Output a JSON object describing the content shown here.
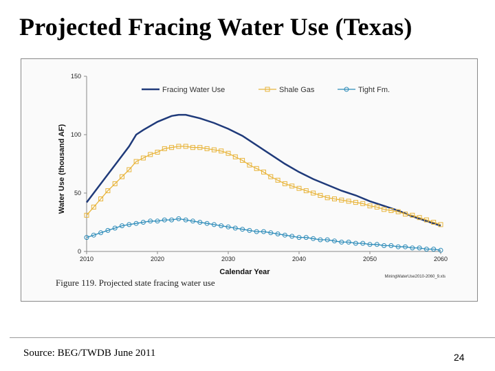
{
  "slide": {
    "title": "Projected Fracing Water Use (Texas)",
    "source": "Source: BEG/TWDB June 2011",
    "page_number": "24"
  },
  "figure": {
    "caption": "Figure 119. Projected state fracing water use",
    "filename": "MiningWaterUse2010-2060_9.xls"
  },
  "chart_data": {
    "type": "line",
    "xlabel": "Calendar Year",
    "ylabel": "Water Use (thousand AF)",
    "xlim": [
      2010,
      2060
    ],
    "ylim": [
      0,
      150
    ],
    "x_ticks": [
      2010,
      2020,
      2030,
      2040,
      2050,
      2060
    ],
    "y_ticks": [
      0,
      50,
      100,
      150
    ],
    "grid": false,
    "legend_position": "top",
    "series": [
      {
        "name": "Fracing Water Use",
        "color": "#1f3a7a",
        "marker": "none",
        "x": [
          2010,
          2012,
          2014,
          2016,
          2017,
          2018,
          2020,
          2022,
          2023,
          2024,
          2026,
          2028,
          2030,
          2032,
          2034,
          2036,
          2038,
          2040,
          2042,
          2044,
          2046,
          2048,
          2050,
          2052,
          2054,
          2056,
          2058,
          2060
        ],
        "values": [
          42,
          58,
          74,
          90,
          100,
          104,
          111,
          116,
          117,
          117,
          114,
          110,
          105,
          99,
          91,
          83,
          75,
          68,
          62,
          57,
          52,
          48,
          43,
          39,
          35,
          30,
          26,
          22
        ]
      },
      {
        "name": "Shale Gas",
        "color": "#e8b43a",
        "marker": "square",
        "x": [
          2010,
          2011,
          2012,
          2013,
          2014,
          2015,
          2016,
          2017,
          2018,
          2019,
          2020,
          2021,
          2022,
          2023,
          2024,
          2025,
          2026,
          2027,
          2028,
          2029,
          2030,
          2031,
          2032,
          2033,
          2034,
          2035,
          2036,
          2037,
          2038,
          2039,
          2040,
          2041,
          2042,
          2043,
          2044,
          2045,
          2046,
          2047,
          2048,
          2049,
          2050,
          2051,
          2052,
          2053,
          2054,
          2055,
          2056,
          2057,
          2058,
          2059,
          2060
        ],
        "values": [
          31,
          38,
          45,
          52,
          58,
          64,
          70,
          77,
          80,
          83,
          85,
          88,
          89,
          90,
          90,
          89,
          89,
          88,
          87,
          86,
          84,
          81,
          78,
          74,
          71,
          68,
          64,
          61,
          58,
          56,
          54,
          52,
          50,
          48,
          46,
          45,
          44,
          43,
          42,
          41,
          39,
          38,
          36,
          35,
          34,
          32,
          31,
          29,
          27,
          25,
          23
        ]
      },
      {
        "name": "Tight Fm.",
        "color": "#2a8ab8",
        "marker": "circle",
        "x": [
          2010,
          2011,
          2012,
          2013,
          2014,
          2015,
          2016,
          2017,
          2018,
          2019,
          2020,
          2021,
          2022,
          2023,
          2024,
          2025,
          2026,
          2027,
          2028,
          2029,
          2030,
          2031,
          2032,
          2033,
          2034,
          2035,
          2036,
          2037,
          2038,
          2039,
          2040,
          2041,
          2042,
          2043,
          2044,
          2045,
          2046,
          2047,
          2048,
          2049,
          2050,
          2051,
          2052,
          2053,
          2054,
          2055,
          2056,
          2057,
          2058,
          2059,
          2060
        ],
        "values": [
          12,
          14,
          16,
          18,
          20,
          22,
          23,
          24,
          25,
          26,
          26,
          27,
          27,
          28,
          27,
          26,
          25,
          24,
          23,
          22,
          21,
          20,
          19,
          18,
          17,
          17,
          16,
          15,
          14,
          13,
          12,
          12,
          11,
          10,
          10,
          9,
          8,
          8,
          7,
          7,
          6,
          6,
          5,
          5,
          4,
          4,
          3,
          3,
          2,
          2,
          1
        ]
      }
    ]
  }
}
